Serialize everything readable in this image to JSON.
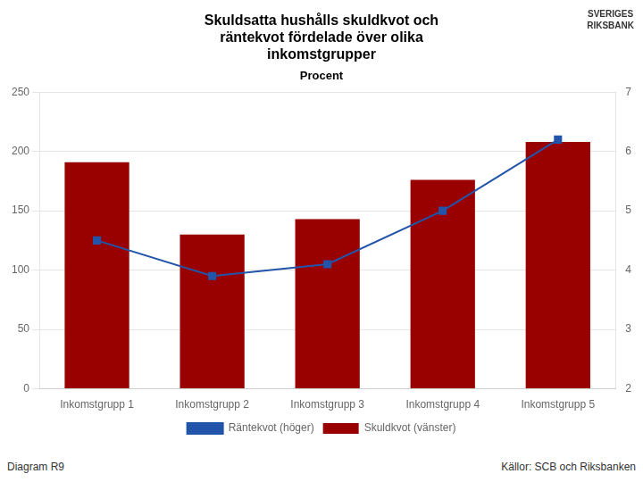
{
  "chart_data": {
    "type": "bar",
    "title": "Skuldsatta hushålls skuldkvot och\nräntekvot fördelade över olika\ninkomstgrupper",
    "subtitle": "Procent",
    "categories": [
      "Inkomstgrupp 1",
      "Inkomstgrupp 2",
      "Inkomstgrupp 3",
      "Inkomstgrupp 4",
      "Inkomstgrupp 5"
    ],
    "series": [
      {
        "name": "Skuldkvot (vänster)",
        "type": "bar",
        "color": "#990000",
        "values": [
          191,
          130,
          143,
          176,
          208
        ]
      },
      {
        "name": "Räntekvot (höger)",
        "type": "line",
        "color": "#2255AA",
        "marker": "square",
        "line_style": "solid",
        "axis": "y2",
        "values": [
          4.5,
          3.9,
          4.1,
          5.0,
          6.2
        ]
      }
    ],
    "ylim": [
      0,
      250
    ],
    "yticks": [
      0,
      50,
      100,
      150,
      200,
      250
    ],
    "y2lim": [
      2,
      7
    ],
    "y2ticks": [
      2,
      3,
      4,
      5,
      6,
      7
    ],
    "grid": true,
    "legend": "bottom",
    "annotations": [
      "Diagram R9",
      "Källor: SCB och Riksbanken",
      "SVERIGES\nRIKSBANK"
    ]
  }
}
